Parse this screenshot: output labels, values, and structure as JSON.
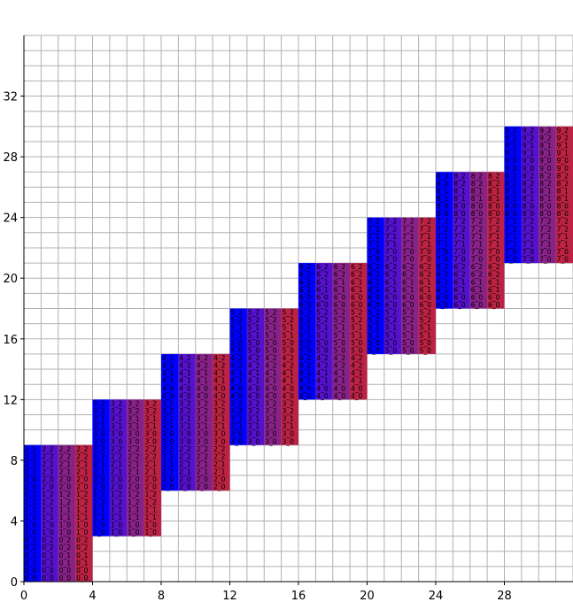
{
  "chart_data": {
    "type": "heatmap",
    "title": "",
    "xlabel": "",
    "ylabel": "",
    "xlim": [
      0,
      32
    ],
    "ylim": [
      0,
      36
    ],
    "x_ticks": [
      0,
      4,
      8,
      12,
      16,
      20,
      24,
      28
    ],
    "x_tick_labels": [
      "0",
      "4",
      "8",
      "12",
      "16",
      "20",
      "24",
      "28"
    ],
    "y_ticks": [
      0,
      4,
      8,
      12,
      16,
      20,
      24,
      28,
      32
    ],
    "y_tick_labels": [
      "0",
      "4",
      "8",
      "12",
      "16",
      "20",
      "24",
      "28",
      "32"
    ],
    "grid": true,
    "legend": "none",
    "block_width": 4,
    "block_height": 9,
    "column_colors": [
      "#0000ff",
      "#5511cc",
      "#882288",
      "#bb2244"
    ],
    "blocks": [
      {
        "x": 0,
        "y": 0,
        "labels": [
          "0_0",
          "0_0",
          "0_1",
          "0_1",
          "0_2",
          "0_2",
          "1_0",
          "1_0",
          "1_1",
          "1_1",
          "1_2",
          "1_2",
          "2_0",
          "2_0",
          "2_1",
          "2_1",
          "2_2",
          "2_2"
        ]
      },
      {
        "x": 4,
        "y": 3,
        "labels": [
          "1_0",
          "1_0",
          "1_1",
          "1_1",
          "1_2",
          "1_2",
          "2_0",
          "2_0",
          "2_1",
          "2_1",
          "2_2",
          "2_2",
          "3_0",
          "3_0",
          "3_1",
          "3_1",
          "3_2",
          "3_2"
        ]
      },
      {
        "x": 8,
        "y": 6,
        "labels": [
          "2_0",
          "2_0",
          "2_1",
          "2_1",
          "2_2",
          "2_2",
          "3_0",
          "3_0",
          "3_1",
          "3_1",
          "3_2",
          "3_2",
          "4_0",
          "4_0",
          "4_1",
          "4_1",
          "4_2",
          "4_2"
        ]
      },
      {
        "x": 12,
        "y": 9,
        "labels": [
          "3_0",
          "3_0",
          "3_1",
          "3_1",
          "3_2",
          "3_2",
          "4_0",
          "4_0",
          "4_1",
          "4_1",
          "4_2",
          "4_2",
          "5_0",
          "5_0",
          "5_1",
          "5_1",
          "5_2",
          "5_2"
        ]
      },
      {
        "x": 16,
        "y": 12,
        "labels": [
          "4_0",
          "4_0",
          "4_1",
          "4_1",
          "4_2",
          "4_2",
          "5_0",
          "5_0",
          "5_1",
          "5_1",
          "5_2",
          "5_2",
          "6_0",
          "6_0",
          "6_1",
          "6_1",
          "6_2",
          "6_2"
        ]
      },
      {
        "x": 20,
        "y": 15,
        "labels": [
          "5_0",
          "5_0",
          "5_1",
          "5_1",
          "5_2",
          "5_2",
          "6_0",
          "6_0",
          "6_1",
          "6_1",
          "6_2",
          "6_2",
          "7_0",
          "7_0",
          "7_1",
          "7_1",
          "7_2",
          "7_2"
        ]
      },
      {
        "x": 24,
        "y": 18,
        "labels": [
          "6_0",
          "6_0",
          "6_1",
          "6_1",
          "6_2",
          "6_2",
          "7_0",
          "7_0",
          "7_1",
          "7_1",
          "7_2",
          "7_2",
          "8_0",
          "8_0",
          "8_1",
          "8_1",
          "8_2",
          "8_2"
        ]
      },
      {
        "x": 28,
        "y": 21,
        "labels": [
          "7_0",
          "7_0",
          "7_1",
          "7_1",
          "7_2",
          "7_2",
          "8_0",
          "8_0",
          "8_1",
          "8_1",
          "8_2",
          "8_2",
          "9_0",
          "9_0",
          "9_1",
          "9_1",
          "9_2",
          "9_2"
        ]
      }
    ],
    "colored_rows_per_block": 9
  }
}
